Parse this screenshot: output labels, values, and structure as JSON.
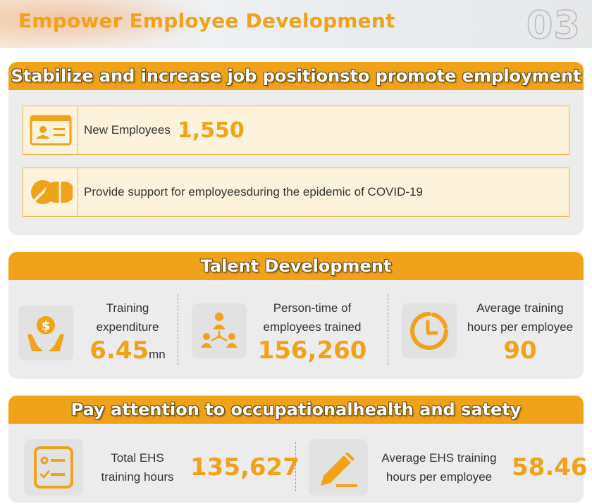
{
  "page": {
    "title": "Empower Employee Development",
    "number": "03"
  },
  "colors": {
    "accent": "#f0a21a",
    "panel": "#ececec",
    "row_fill": "#fdf3dd"
  },
  "employment": {
    "header": "Stabilize and increase job positionsto promote employment",
    "new_employees": {
      "icon": "id-card-icon",
      "label": "New Employees",
      "value": "1,550"
    },
    "covid_support": {
      "icon": "pill-icon",
      "label": "Provide support for employeesduring the epidemic of COVID-19"
    }
  },
  "talent": {
    "header": "Talent Development",
    "items": [
      {
        "icon": "money-hands-icon",
        "label_line1": "Training",
        "label_line2": "expenditure",
        "value": "6.45",
        "unit": "mn"
      },
      {
        "icon": "people-network-icon",
        "label_line1": "Person-time of",
        "label_line2": "employees trained",
        "value": "156,260",
        "unit": ""
      },
      {
        "icon": "clock-icon",
        "label_line1": "Average training",
        "label_line2": "hours per employee",
        "value": "90",
        "unit": ""
      }
    ]
  },
  "ehs": {
    "header": "Pay attention to occupationalhealth and satety",
    "items": [
      {
        "icon": "checklist-icon",
        "label_line1": "Total EHS",
        "label_line2": "training hours",
        "value": "135,627"
      },
      {
        "icon": "pencil-icon",
        "label_line1": "Average EHS training",
        "label_line2": "hours per employee",
        "value": "58.46"
      }
    ]
  }
}
